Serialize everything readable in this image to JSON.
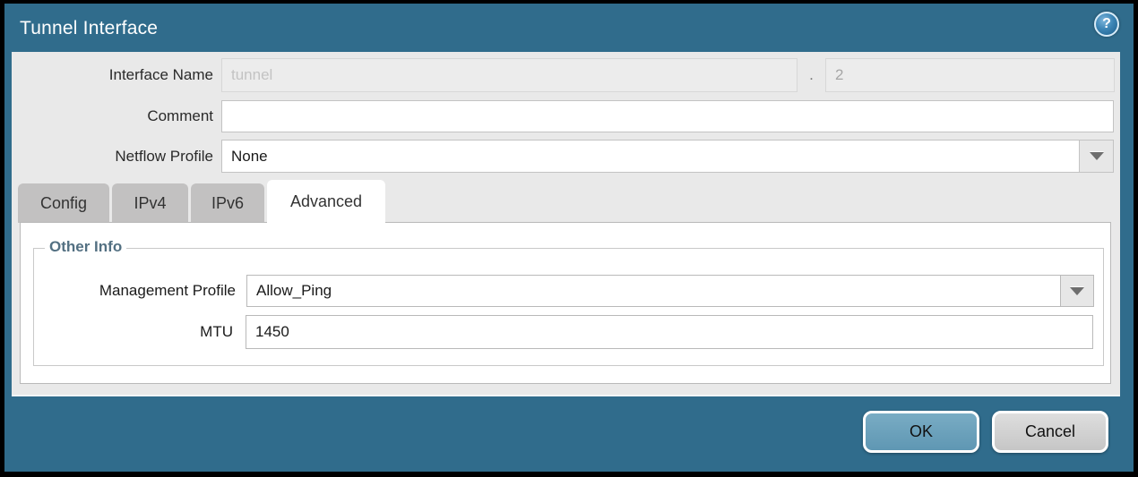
{
  "dialog": {
    "title": "Tunnel Interface",
    "help_icon_glyph": "?"
  },
  "form": {
    "interface_name": {
      "label": "Interface Name",
      "base_value": "tunnel",
      "separator": ".",
      "suffix_value": "2"
    },
    "comment": {
      "label": "Comment",
      "value": ""
    },
    "netflow_profile": {
      "label": "Netflow Profile",
      "value": "None"
    }
  },
  "tabs": [
    {
      "label": "Config",
      "active": false
    },
    {
      "label": "IPv4",
      "active": false
    },
    {
      "label": "IPv6",
      "active": false
    },
    {
      "label": "Advanced",
      "active": true
    }
  ],
  "advanced_tab": {
    "section_title": "Other Info",
    "management_profile": {
      "label": "Management Profile",
      "value": "Allow_Ping"
    },
    "mtu": {
      "label": "MTU",
      "value": "1450"
    }
  },
  "buttons": {
    "ok": "OK",
    "cancel": "Cancel"
  },
  "colors": {
    "dialog_teal": "#306c8c",
    "form_background": "#e9e9e9",
    "tab_inactive": "#c2c1c1",
    "tab_active": "#ffffff",
    "section_title": "#537082",
    "ok_button": "#6aa0bc",
    "cancel_button": "#d3d3d3",
    "border_black": "#000000"
  }
}
